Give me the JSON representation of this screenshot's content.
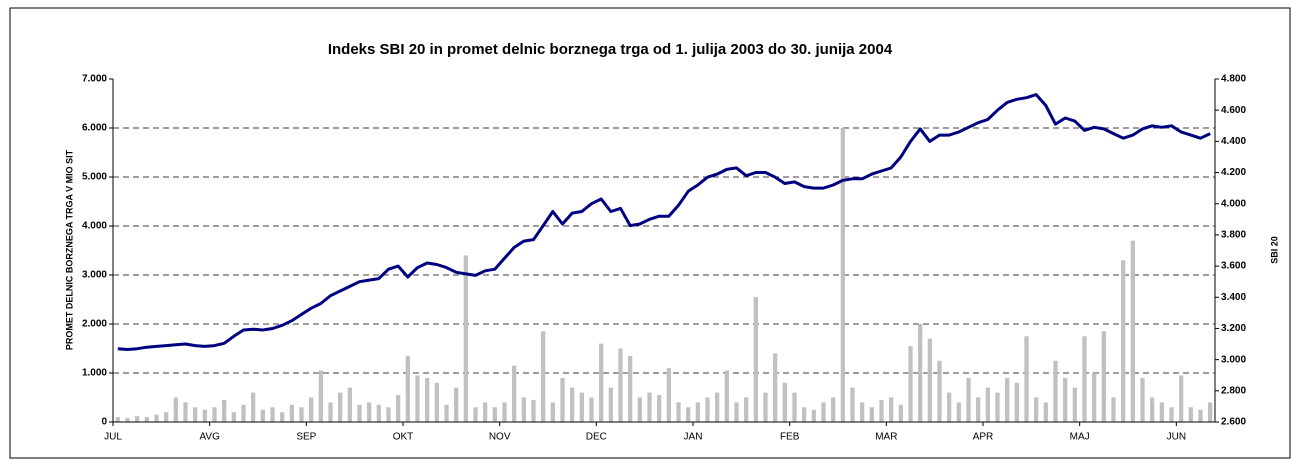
{
  "chart_data": {
    "type": "bar_line",
    "title": "Indeks SBI 20 in promet delnic borznega trga od 1. julija 2003 do 30. junija 2004",
    "y_label": "PROMET DELNIC BORZNEGA TRGA V MIO SIT",
    "y2_label": "SBI 20",
    "categories": [
      "JUL",
      null,
      null,
      null,
      null,
      null,
      null,
      null,
      null,
      null,
      "AVG",
      null,
      null,
      null,
      null,
      null,
      null,
      null,
      null,
      null,
      "SEP",
      null,
      null,
      null,
      null,
      null,
      null,
      null,
      null,
      null,
      "OKT",
      null,
      null,
      null,
      null,
      null,
      null,
      null,
      null,
      null,
      "NOV",
      null,
      null,
      null,
      null,
      null,
      null,
      null,
      null,
      null,
      "DEC",
      null,
      null,
      null,
      null,
      null,
      null,
      null,
      null,
      null,
      "JAN",
      null,
      null,
      null,
      null,
      null,
      null,
      null,
      null,
      null,
      "FEB",
      null,
      null,
      null,
      null,
      null,
      null,
      null,
      null,
      null,
      "MAR",
      null,
      null,
      null,
      null,
      null,
      null,
      null,
      null,
      null,
      "APR",
      null,
      null,
      null,
      null,
      null,
      null,
      null,
      null,
      null,
      "MAJ",
      null,
      null,
      null,
      null,
      null,
      null,
      null,
      null,
      null,
      "JUN",
      null,
      null,
      null
    ],
    "series": [
      {
        "name": "Promet",
        "type": "bar",
        "color": "#c0c0c0",
        "values": [
          100,
          80,
          120,
          100,
          150,
          200,
          500,
          400,
          300,
          250,
          300,
          450,
          200,
          350,
          600,
          250,
          300,
          200,
          350,
          300,
          500,
          1050,
          400,
          600,
          700,
          350,
          400,
          350,
          300,
          550,
          1350,
          950,
          900,
          800,
          350,
          700,
          3400,
          300,
          400,
          300,
          400,
          1150,
          500,
          450,
          1850,
          400,
          900,
          700,
          600,
          500,
          1600,
          700,
          1500,
          1350,
          500,
          600,
          550,
          1100,
          400,
          300,
          400,
          500,
          600,
          1050,
          400,
          500,
          2550,
          600,
          1400,
          800,
          600,
          300,
          250,
          400,
          500,
          6000,
          700,
          400,
          300,
          450,
          500,
          350,
          1550,
          2000,
          1700,
          1250,
          600,
          400,
          900,
          500,
          700,
          600,
          900,
          800,
          1750,
          500,
          400,
          1250,
          900,
          700,
          1750,
          1000,
          1850,
          500,
          3300,
          3700,
          900,
          500,
          400,
          300,
          950,
          300,
          250,
          400
        ]
      },
      {
        "name": "SBI 20",
        "type": "line",
        "axis": "y2",
        "color": "#000080",
        "values": [
          3070,
          3065,
          3070,
          3080,
          3085,
          3090,
          3095,
          3100,
          3090,
          3085,
          3090,
          3105,
          3150,
          3190,
          3195,
          3190,
          3200,
          3220,
          3250,
          3290,
          3330,
          3360,
          3410,
          3440,
          3470,
          3500,
          3510,
          3520,
          3580,
          3600,
          3530,
          3590,
          3620,
          3610,
          3590,
          3560,
          3550,
          3540,
          3570,
          3580,
          3650,
          3720,
          3760,
          3770,
          3860,
          3950,
          3870,
          3940,
          3950,
          4000,
          4030,
          3950,
          3970,
          3860,
          3870,
          3900,
          3920,
          3920,
          3990,
          4080,
          4120,
          4170,
          4190,
          4220,
          4230,
          4180,
          4200,
          4200,
          4170,
          4130,
          4140,
          4110,
          4100,
          4100,
          4120,
          4150,
          4160,
          4160,
          4190,
          4210,
          4230,
          4300,
          4400,
          4480,
          4400,
          4440,
          4440,
          4460,
          4490,
          4520,
          4540,
          4600,
          4650,
          4670,
          4680,
          4700,
          4630,
          4510,
          4550,
          4530,
          4470,
          4490,
          4480,
          4450,
          4420,
          4440,
          4480,
          4500,
          4490,
          4500,
          4460,
          4440,
          4420,
          4450
        ]
      }
    ],
    "ylim": [
      0,
      7000
    ],
    "yticks": [
      0,
      {
        "value": 1000,
        "label": "1.000"
      },
      {
        "value": 2000,
        "label": "2.000"
      },
      {
        "value": 3000,
        "label": "3.000"
      },
      {
        "value": 4000,
        "label": "4.000"
      },
      {
        "value": 5000,
        "label": "5.000"
      },
      {
        "value": 6000,
        "label": "6.000"
      },
      {
        "value": 7000,
        "label": "7.000"
      }
    ],
    "y2lim": [
      2600,
      4800
    ],
    "y2ticks": [
      {
        "value": 2600,
        "label": "2.600"
      },
      {
        "value": 2800,
        "label": "2.800"
      },
      {
        "value": 3000,
        "label": "3.000"
      },
      {
        "value": 3200,
        "label": "3.200"
      },
      {
        "value": 3400,
        "label": "3.400"
      },
      {
        "value": 3600,
        "label": "3.600"
      },
      {
        "value": 3800,
        "label": "3.800"
      },
      {
        "value": 4000,
        "label": "4.000"
      },
      {
        "value": 4200,
        "label": "4.200"
      },
      {
        "value": 4400,
        "label": "4.400"
      },
      {
        "value": 4600,
        "label": "4.600"
      },
      {
        "value": 4800,
        "label": "4.800"
      }
    ],
    "grid": true
  }
}
